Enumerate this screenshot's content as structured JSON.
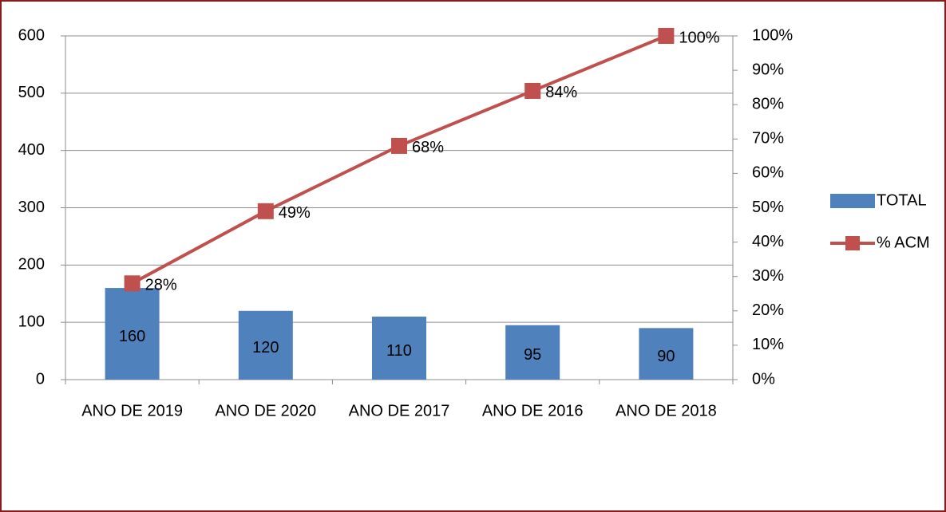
{
  "chart_data": {
    "type": "bar",
    "categories": [
      "ANO DE 2019",
      "ANO DE 2020",
      "ANO DE 2017",
      "ANO DE 2016",
      "ANO DE 2018"
    ],
    "series": [
      {
        "name": "TOTAL",
        "color": "#4f81bd",
        "values": [
          160,
          120,
          110,
          95,
          90
        ]
      },
      {
        "name": "% ACM",
        "type": "line",
        "axis": "y2",
        "color": "#c0504d",
        "values": [
          28,
          49,
          68,
          84,
          100
        ],
        "value_labels": [
          "28%",
          "49%",
          "68%",
          "84%",
          "100%"
        ]
      }
    ],
    "ylim": [
      0,
      600
    ],
    "yticks": [
      0,
      100,
      200,
      300,
      400,
      500,
      600
    ],
    "y2lim": [
      0,
      100
    ],
    "y2ticks": [
      {
        "value": 0,
        "label": "0%"
      },
      {
        "value": 10,
        "label": "10%"
      },
      {
        "value": 20,
        "label": "20%"
      },
      {
        "value": 30,
        "label": "30%"
      },
      {
        "value": 40,
        "label": "40%"
      },
      {
        "value": 50,
        "label": "50%"
      },
      {
        "value": 60,
        "label": "60%"
      },
      {
        "value": 70,
        "label": "70%"
      },
      {
        "value": 80,
        "label": "80%"
      },
      {
        "value": 90,
        "label": "90%"
      },
      {
        "value": 100,
        "label": "100%"
      }
    ],
    "grid": true,
    "legend": "right"
  }
}
